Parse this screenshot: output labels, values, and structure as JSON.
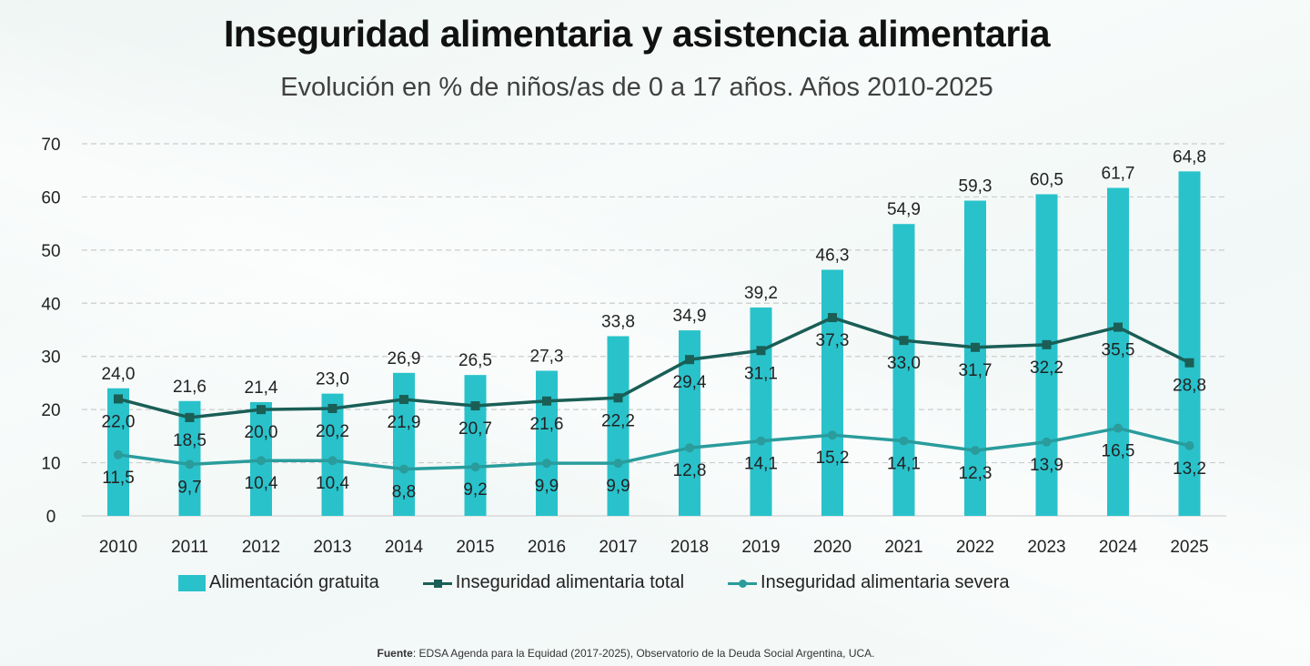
{
  "colors": {
    "bar": "#29c2cb",
    "line_total": "#1a5e56",
    "line_severa": "#2a9c9c",
    "grid": "#cccccc",
    "axis": "#d9d9d9"
  },
  "source": {
    "label": "Fuente",
    "text": ": EDSA Agenda para la Equidad (2017-2025), Observatorio de la Deuda Social Argentina, UCA."
  },
  "chart_data": {
    "type": "bar",
    "title": "Inseguridad alimentaria y asistencia alimentaria",
    "subtitle": "Evolución en % de niños/as de 0 a 17 años. Años 2010-2025",
    "xlabel": "",
    "ylabel": "",
    "ylim": [
      0,
      70
    ],
    "yticks": [
      0,
      10,
      20,
      30,
      40,
      50,
      60,
      70
    ],
    "grid": true,
    "legend_position": "bottom",
    "categories": [
      "2010",
      "2011",
      "2012",
      "2013",
      "2014",
      "2015",
      "2016",
      "2017",
      "2018",
      "2019",
      "2020",
      "2021",
      "2022",
      "2023",
      "2024",
      "2025"
    ],
    "series": [
      {
        "name": "Alimentación gratuita",
        "type": "bar",
        "values": [
          24.0,
          21.6,
          21.4,
          23.0,
          26.9,
          26.5,
          27.3,
          33.8,
          34.9,
          39.2,
          46.3,
          54.9,
          59.3,
          60.5,
          61.7,
          64.8
        ],
        "labels": [
          "24,0",
          "21,6",
          "21,4",
          "23,0",
          "26,9",
          "26,5",
          "27,3",
          "33,8",
          "34,9",
          "39,2",
          "46,3",
          "54,9",
          "59,3",
          "60,5",
          "61,7",
          "64,8"
        ]
      },
      {
        "name": "Inseguridad alimentaria total",
        "type": "line",
        "marker": "square",
        "values": [
          22.0,
          18.5,
          20.0,
          20.2,
          21.9,
          20.7,
          21.6,
          22.2,
          29.4,
          31.1,
          37.3,
          33.0,
          31.7,
          32.2,
          35.5,
          28.8
        ],
        "labels": [
          "22,0",
          "18,5",
          "20,0",
          "20,2",
          "21,9",
          "20,7",
          "21,6",
          "22,2",
          "29,4",
          "31,1",
          "37,3",
          "33,0",
          "31,7",
          "32,2",
          "35,5",
          "28,8"
        ]
      },
      {
        "name": "Inseguridad alimentaria severa",
        "type": "line",
        "marker": "circle",
        "values": [
          11.5,
          9.7,
          10.4,
          10.4,
          8.8,
          9.2,
          9.9,
          9.9,
          12.8,
          14.1,
          15.2,
          14.1,
          12.3,
          13.9,
          16.5,
          13.2
        ],
        "labels": [
          "11,5",
          "9,7",
          "10,4",
          "10,4",
          "8,8",
          "9,2",
          "9,9",
          "9,9",
          "12,8",
          "14,1",
          "15,2",
          "14,1",
          "12,3",
          "13,9",
          "16,5",
          "13,2"
        ]
      }
    ]
  }
}
